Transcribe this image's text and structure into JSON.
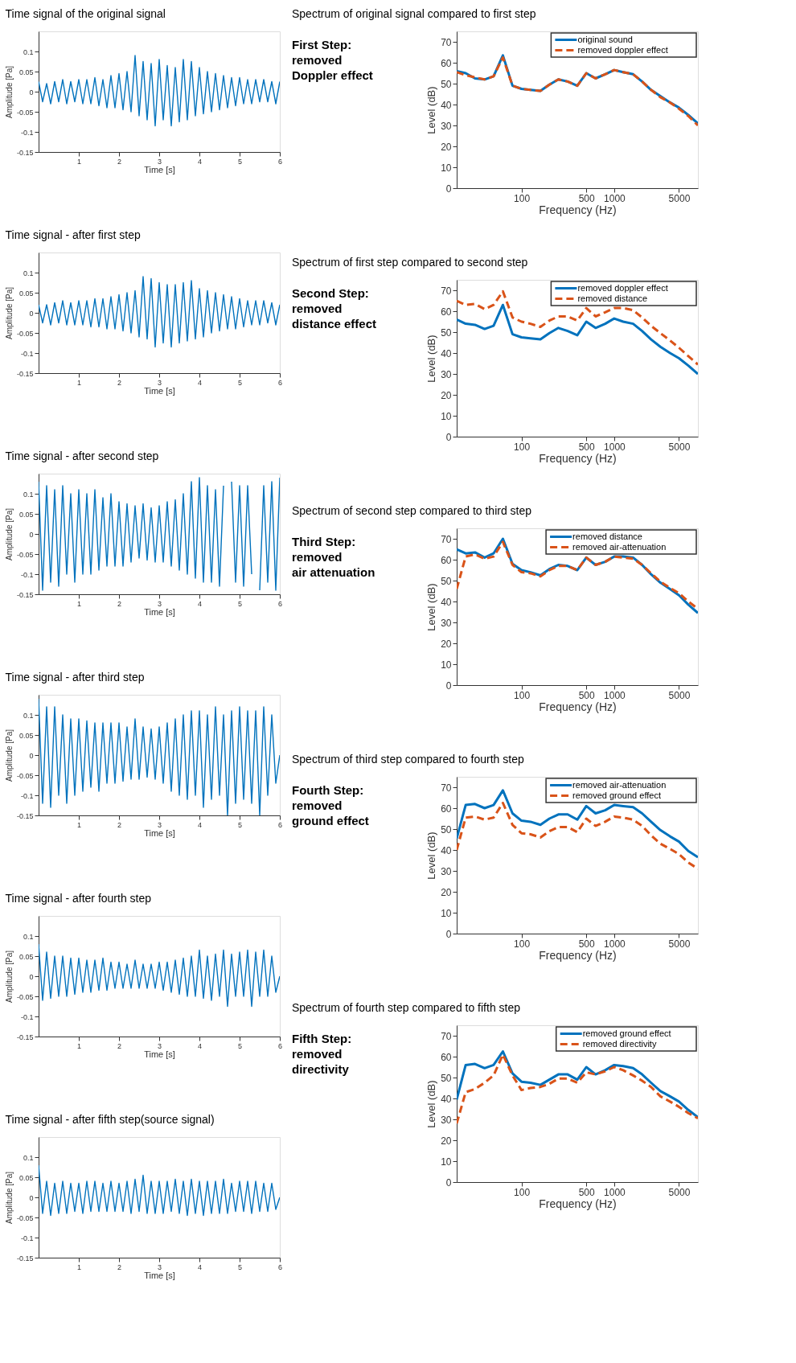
{
  "chart_data": [
    {
      "type": "line",
      "title": "Time signal of the original signal",
      "xlabel": "Time [s]",
      "ylabel": "Amplitude [Pa]",
      "xlim": [
        0,
        6
      ],
      "xticks": [
        1,
        2,
        3,
        4,
        5,
        6
      ],
      "ylim": [
        -0.15,
        0.15
      ],
      "yticks": [
        -0.15,
        -0.1,
        -0.05,
        0,
        0.05,
        0.1
      ],
      "x": [
        0,
        0.1,
        0.2,
        0.3,
        0.4,
        0.5,
        0.6,
        0.7,
        0.8,
        0.9,
        1.0,
        1.1,
        1.2,
        1.3,
        1.4,
        1.5,
        1.6,
        1.7,
        1.8,
        1.9,
        2.0,
        2.1,
        2.2,
        2.3,
        2.4,
        2.5,
        2.6,
        2.7,
        2.8,
        2.9,
        3.0,
        3.1,
        3.2,
        3.3,
        3.4,
        3.5,
        3.6,
        3.7,
        3.8,
        3.9,
        4.0,
        4.1,
        4.2,
        4.3,
        4.4,
        4.5,
        4.6,
        4.7,
        4.8,
        4.9,
        5.0,
        5.1,
        5.2,
        5.3,
        5.4,
        5.5,
        5.6,
        5.7,
        5.8,
        5.9,
        6.0
      ],
      "series": [
        {
          "color": "#0072bd",
          "line_style": "solid",
          "values": [
            0.025,
            -0.025,
            0.02,
            -0.03,
            0.025,
            -0.025,
            0.03,
            -0.03,
            0.025,
            -0.025,
            0.03,
            -0.03,
            0.03,
            -0.03,
            0.035,
            -0.035,
            0.03,
            -0.04,
            0.04,
            -0.04,
            0.045,
            -0.045,
            0.05,
            -0.05,
            0.09,
            -0.06,
            0.075,
            -0.07,
            0.07,
            -0.085,
            0.08,
            -0.07,
            0.065,
            -0.085,
            0.06,
            -0.075,
            0.08,
            -0.07,
            0.075,
            -0.06,
            0.06,
            -0.055,
            0.05,
            -0.05,
            0.045,
            -0.045,
            0.04,
            -0.04,
            0.035,
            -0.035,
            0.035,
            -0.03,
            0.03,
            -0.03,
            0.03,
            -0.025,
            0.03,
            -0.025,
            0.025,
            -0.03,
            0.025
          ]
        }
      ]
    },
    {
      "type": "line",
      "title": "Spectrum of original signal compared to  first step",
      "xlabel": "Frequency (Hz)",
      "ylabel": "Level (dB)",
      "log": "x",
      "legend": "top right",
      "xlim": [
        20,
        8000
      ],
      "xticks": [
        100,
        500,
        1000,
        5000
      ],
      "ylim": [
        0,
        75
      ],
      "yticks": [
        0,
        10,
        20,
        30,
        40,
        50,
        60,
        70
      ],
      "annotations": [
        "First Step:",
        "removed",
        "Doppler effect"
      ],
      "x": [
        20,
        25,
        31.5,
        40,
        50,
        63,
        80,
        100,
        125,
        160,
        200,
        250,
        315,
        400,
        500,
        630,
        800,
        1000,
        1250,
        1600,
        2000,
        2500,
        3150,
        4000,
        5000,
        6300,
        8000
      ],
      "series": [
        {
          "name": "original sound",
          "color": "#0072bd",
          "line_style": "solid",
          "values": [
            56,
            55,
            52.5,
            52,
            53.5,
            63.5,
            49,
            47.5,
            47,
            46.5,
            49.5,
            52,
            51,
            49,
            55,
            52.5,
            54.5,
            56.5,
            55.5,
            54.5,
            51,
            47,
            44,
            41,
            38.5,
            35,
            31
          ]
        },
        {
          "name": "removed doppler effect",
          "color": "#d95319",
          "line_style": "dashed",
          "values": [
            55.5,
            54,
            53,
            52,
            53.5,
            62.5,
            49,
            47.5,
            47,
            46.5,
            49.5,
            52,
            51,
            49,
            55,
            52.5,
            54.5,
            56.5,
            55.5,
            54.5,
            51,
            47,
            43.5,
            41,
            38,
            34.5,
            30
          ]
        }
      ]
    },
    {
      "type": "line",
      "title": "Time signal - after first step",
      "xlabel": "Time [s]",
      "ylabel": "Amplitude [Pa]",
      "xlim": [
        0,
        6
      ],
      "xticks": [
        1,
        2,
        3,
        4,
        5,
        6
      ],
      "ylim": [
        -0.15,
        0.15
      ],
      "yticks": [
        -0.15,
        -0.1,
        -0.05,
        0,
        0.05,
        0.1
      ],
      "x": [
        0,
        0.1,
        0.2,
        0.3,
        0.4,
        0.5,
        0.6,
        0.7,
        0.8,
        0.9,
        1.0,
        1.1,
        1.2,
        1.3,
        1.4,
        1.5,
        1.6,
        1.7,
        1.8,
        1.9,
        2.0,
        2.1,
        2.2,
        2.3,
        2.4,
        2.5,
        2.6,
        2.7,
        2.8,
        2.9,
        3.0,
        3.1,
        3.2,
        3.3,
        3.4,
        3.5,
        3.6,
        3.7,
        3.8,
        3.9,
        4.0,
        4.1,
        4.2,
        4.3,
        4.4,
        4.5,
        4.6,
        4.7,
        4.8,
        4.9,
        5.0,
        5.1,
        5.2,
        5.3,
        5.4,
        5.5,
        5.6,
        5.7,
        5.8,
        5.9,
        6.0
      ],
      "series": [
        {
          "color": "#0072bd",
          "line_style": "solid",
          "values": [
            0.02,
            -0.025,
            0.02,
            -0.03,
            0.025,
            -0.025,
            0.03,
            -0.03,
            0.025,
            -0.03,
            0.03,
            -0.03,
            0.03,
            -0.035,
            0.035,
            -0.035,
            0.035,
            -0.04,
            0.04,
            -0.04,
            0.045,
            -0.045,
            0.05,
            -0.05,
            0.055,
            -0.06,
            0.09,
            -0.065,
            0.085,
            -0.085,
            0.075,
            -0.075,
            0.07,
            -0.085,
            0.07,
            -0.075,
            0.075,
            -0.07,
            0.08,
            -0.065,
            0.06,
            -0.06,
            0.055,
            -0.05,
            0.05,
            -0.045,
            0.045,
            -0.04,
            0.04,
            -0.04,
            0.035,
            -0.035,
            0.03,
            -0.03,
            0.03,
            -0.03,
            0.03,
            -0.025,
            0.025,
            -0.03,
            0.02
          ]
        }
      ]
    },
    {
      "type": "line",
      "title": "Spectrum of first step compared to  second step",
      "xlabel": "Frequency (Hz)",
      "ylabel": "Level (dB)",
      "log": "x",
      "legend": "top right",
      "xlim": [
        20,
        8000
      ],
      "xticks": [
        100,
        500,
        1000,
        5000
      ],
      "ylim": [
        0,
        75
      ],
      "yticks": [
        0,
        10,
        20,
        30,
        40,
        50,
        60,
        70
      ],
      "annotations": [
        "Second Step:",
        " removed",
        "distance effect"
      ],
      "x": [
        20,
        25,
        31.5,
        40,
        50,
        63,
        80,
        100,
        125,
        160,
        200,
        250,
        315,
        400,
        500,
        630,
        800,
        1000,
        1250,
        1600,
        2000,
        2500,
        3150,
        4000,
        5000,
        6300,
        8000
      ],
      "series": [
        {
          "name": "removed doppler effect",
          "color": "#0072bd",
          "line_style": "solid",
          "values": [
            56,
            54,
            53.5,
            51.5,
            53,
            63,
            49,
            47.5,
            47,
            46.5,
            49.5,
            52,
            50.5,
            48.5,
            55,
            52,
            54,
            56.5,
            55,
            54,
            50.5,
            46.5,
            43,
            40,
            37.5,
            34,
            30
          ]
        },
        {
          "name": "removed distance",
          "color": "#d95319",
          "line_style": "dashed",
          "values": [
            65,
            63,
            63.5,
            61,
            63,
            69.5,
            57,
            55,
            54,
            52.5,
            55.5,
            57.5,
            57.5,
            55.5,
            61.5,
            57.5,
            59.5,
            61.5,
            61.5,
            60.5,
            57,
            53,
            49.5,
            46,
            42.5,
            38.5,
            34.5
          ]
        }
      ]
    },
    {
      "type": "line",
      "title": "Time signal - after second step",
      "xlabel": "Time [s]",
      "ylabel": "Amplitude [Pa]",
      "xlim": [
        0,
        6
      ],
      "xticks": [
        1,
        2,
        3,
        4,
        5,
        6
      ],
      "ylim": [
        -0.15,
        0.15
      ],
      "yticks": [
        -0.15,
        -0.1,
        -0.05,
        0,
        0.05,
        0.1
      ],
      "x": [
        0,
        0.1,
        0.2,
        0.3,
        0.4,
        0.5,
        0.6,
        0.7,
        0.8,
        0.9,
        1.0,
        1.1,
        1.2,
        1.3,
        1.4,
        1.5,
        1.6,
        1.7,
        1.8,
        1.9,
        2.0,
        2.1,
        2.2,
        2.3,
        2.4,
        2.5,
        2.6,
        2.7,
        2.8,
        2.9,
        3.0,
        3.1,
        3.2,
        3.3,
        3.4,
        3.5,
        3.6,
        3.7,
        3.8,
        3.9,
        4.0,
        4.1,
        4.2,
        4.3,
        4.4,
        4.5,
        4.6,
        4.7,
        4.8,
        4.9,
        5.0,
        5.1,
        5.2,
        5.3,
        5.4,
        5.5,
        5.6,
        5.7,
        5.8,
        5.9,
        6.0
      ],
      "series": [
        {
          "color": "#0072bd",
          "line_style": "solid",
          "values": [
            0.13,
            -0.14,
            0.12,
            -0.12,
            0.11,
            -0.13,
            0.12,
            -0.1,
            0.1,
            -0.12,
            0.11,
            -0.1,
            0.1,
            -0.1,
            0.11,
            -0.09,
            0.09,
            -0.08,
            0.1,
            -0.08,
            0.08,
            -0.08,
            0.075,
            -0.07,
            0.07,
            -0.06,
            0.075,
            -0.065,
            0.065,
            -0.07,
            0.07,
            -0.07,
            0.08,
            -0.08,
            0.085,
            -0.09,
            0.1,
            -0.1,
            0.13,
            -0.11,
            0.14,
            -0.12,
            0.12,
            -0.12,
            0.11,
            -0.13,
            0.12,
            null,
            0.13,
            -0.12,
            0.12,
            -0.13,
            0.12,
            -0.1,
            null,
            -0.14,
            0.12,
            -0.12,
            0.13,
            -0.14,
            0.14
          ]
        }
      ]
    },
    {
      "type": "line",
      "title": "Spectrum of second step compared to  third step",
      "xlabel": "Frequency (Hz)",
      "ylabel": "Level (dB)",
      "log": "x",
      "legend": "top right",
      "xlim": [
        20,
        8000
      ],
      "xticks": [
        100,
        500,
        1000,
        5000
      ],
      "ylim": [
        0,
        75
      ],
      "yticks": [
        0,
        10,
        20,
        30,
        40,
        50,
        60,
        70
      ],
      "annotations": [
        "Third Step:",
        " removed",
        "air attenuation"
      ],
      "x": [
        20,
        25,
        31.5,
        40,
        50,
        63,
        80,
        100,
        125,
        160,
        200,
        250,
        315,
        400,
        500,
        630,
        800,
        1000,
        1250,
        1600,
        2000,
        2500,
        3150,
        4000,
        5000,
        6300,
        8000
      ],
      "series": [
        {
          "name": "removed distance",
          "color": "#0072bd",
          "line_style": "solid",
          "values": [
            65,
            63,
            63.5,
            61,
            63,
            70,
            58,
            55,
            54,
            52.5,
            55.5,
            57.5,
            57,
            55,
            61,
            57.5,
            59,
            61.5,
            61.5,
            61,
            57.5,
            53,
            49,
            46,
            43,
            38.5,
            34.5
          ]
        },
        {
          "name": "removed air-attenuation",
          "color": "#d95319",
          "line_style": "dashed",
          "values": [
            46,
            61.5,
            62.5,
            60.5,
            61.5,
            68.5,
            57.5,
            54,
            53.5,
            52,
            55,
            57,
            57,
            55,
            61,
            57.5,
            59,
            61.5,
            61,
            60.5,
            57.5,
            53.5,
            49.5,
            46.5,
            44,
            40,
            36.5
          ]
        }
      ]
    },
    {
      "type": "line",
      "title": "Time signal - after third step",
      "xlabel": "Time [s]",
      "ylabel": "Amplitude [Pa]",
      "xlim": [
        0,
        6
      ],
      "xticks": [
        1,
        2,
        3,
        4,
        5,
        6
      ],
      "ylim": [
        -0.15,
        0.15
      ],
      "yticks": [
        -0.15,
        -0.1,
        -0.05,
        0,
        0.05,
        0.1
      ],
      "x": [
        0,
        0.1,
        0.2,
        0.3,
        0.4,
        0.5,
        0.6,
        0.7,
        0.8,
        0.9,
        1.0,
        1.1,
        1.2,
        1.3,
        1.4,
        1.5,
        1.6,
        1.7,
        1.8,
        1.9,
        2.0,
        2.1,
        2.2,
        2.3,
        2.4,
        2.5,
        2.6,
        2.7,
        2.8,
        2.9,
        3.0,
        3.1,
        3.2,
        3.3,
        3.4,
        3.5,
        3.6,
        3.7,
        3.8,
        3.9,
        4.0,
        4.1,
        4.2,
        4.3,
        4.4,
        4.5,
        4.6,
        4.7,
        4.8,
        4.9,
        5.0,
        5.1,
        5.2,
        5.3,
        5.4,
        5.5,
        5.6,
        5.7,
        5.8,
        5.9,
        6.0
      ],
      "series": [
        {
          "color": "#0072bd",
          "line_style": "solid",
          "values": [
            0.14,
            -0.12,
            0.12,
            -0.13,
            0.12,
            -0.1,
            0.1,
            -0.12,
            0.09,
            -0.1,
            0.09,
            -0.09,
            0.085,
            -0.08,
            0.08,
            -0.09,
            0.08,
            -0.07,
            0.08,
            -0.07,
            0.08,
            -0.065,
            0.07,
            -0.06,
            0.09,
            -0.06,
            0.07,
            -0.055,
            0.065,
            -0.06,
            0.07,
            -0.07,
            0.08,
            -0.09,
            0.09,
            -0.1,
            0.1,
            -0.11,
            0.11,
            -0.1,
            0.11,
            -0.13,
            0.1,
            -0.11,
            0.12,
            -0.1,
            0.1,
            -0.15,
            0.11,
            -0.12,
            0.12,
            -0.11,
            0.11,
            -0.12,
            0.11,
            -0.15,
            0.12,
            -0.1,
            0.1,
            -0.07,
            0
          ]
        }
      ]
    },
    {
      "type": "line",
      "title": "Spectrum of third step compared to  fourth step",
      "xlabel": "Frequency (Hz)",
      "ylabel": "Level (dB)",
      "log": "x",
      "legend": "top right",
      "xlim": [
        20,
        8000
      ],
      "xticks": [
        100,
        500,
        1000,
        5000
      ],
      "ylim": [
        0,
        75
      ],
      "yticks": [
        0,
        10,
        20,
        30,
        40,
        50,
        60,
        70
      ],
      "annotations": [
        "Fourth Step:",
        " removed",
        "ground effect"
      ],
      "x": [
        20,
        25,
        31.5,
        40,
        50,
        63,
        80,
        100,
        125,
        160,
        200,
        250,
        315,
        400,
        500,
        630,
        800,
        1000,
        1250,
        1600,
        2000,
        2500,
        3150,
        4000,
        5000,
        6300,
        8000
      ],
      "series": [
        {
          "name": "removed air-attenuation",
          "color": "#0072bd",
          "line_style": "solid",
          "values": [
            45.5,
            61.5,
            62,
            60,
            61.5,
            68.5,
            57.5,
            54,
            53.5,
            52,
            55,
            57,
            57,
            54.5,
            61,
            57.5,
            59,
            61.5,
            61,
            60.5,
            57.5,
            53.5,
            49.5,
            46.5,
            44,
            39.5,
            36.5
          ]
        },
        {
          "name": "removed ground effect",
          "color": "#d95319",
          "line_style": "dashed",
          "values": [
            40,
            55.5,
            56,
            54.5,
            55.5,
            62.5,
            52,
            48,
            47.5,
            46,
            49,
            51,
            51,
            48.5,
            55,
            51.5,
            53.5,
            56,
            55.5,
            54.5,
            51.5,
            47,
            43,
            40.5,
            38,
            34,
            31
          ]
        }
      ]
    },
    {
      "type": "line",
      "title": "Time signal - after fourth step",
      "xlabel": "Time [s]",
      "ylabel": "Amplitude [Pa]",
      "xlim": [
        0,
        6
      ],
      "xticks": [
        1,
        2,
        3,
        4,
        5,
        6
      ],
      "ylim": [
        -0.15,
        0.15
      ],
      "yticks": [
        -0.15,
        -0.1,
        -0.05,
        0,
        0.05,
        0.1
      ],
      "x": [
        0,
        0.1,
        0.2,
        0.3,
        0.4,
        0.5,
        0.6,
        0.7,
        0.8,
        0.9,
        1.0,
        1.1,
        1.2,
        1.3,
        1.4,
        1.5,
        1.6,
        1.7,
        1.8,
        1.9,
        2.0,
        2.1,
        2.2,
        2.3,
        2.4,
        2.5,
        2.6,
        2.7,
        2.8,
        2.9,
        3.0,
        3.1,
        3.2,
        3.3,
        3.4,
        3.5,
        3.6,
        3.7,
        3.8,
        3.9,
        4.0,
        4.1,
        4.2,
        4.3,
        4.4,
        4.5,
        4.6,
        4.7,
        4.8,
        4.9,
        5.0,
        5.1,
        5.2,
        5.3,
        5.4,
        5.5,
        5.6,
        5.7,
        5.8,
        5.9,
        6.0
      ],
      "series": [
        {
          "color": "#0072bd",
          "line_style": "solid",
          "values": [
            0.08,
            -0.06,
            0.06,
            -0.055,
            0.05,
            -0.05,
            0.05,
            -0.05,
            0.045,
            -0.045,
            0.045,
            -0.04,
            0.04,
            -0.04,
            0.04,
            -0.035,
            0.045,
            -0.035,
            0.035,
            -0.03,
            0.035,
            -0.03,
            0.03,
            -0.03,
            0.04,
            -0.03,
            0.03,
            -0.03,
            0.03,
            -0.03,
            0.035,
            -0.035,
            0.035,
            -0.04,
            0.04,
            -0.045,
            0.045,
            -0.05,
            0.05,
            -0.05,
            0.065,
            -0.055,
            0.05,
            -0.06,
            0.055,
            -0.05,
            0.065,
            -0.075,
            0.055,
            -0.05,
            0.06,
            -0.05,
            0.065,
            -0.075,
            0.06,
            -0.05,
            0.065,
            -0.05,
            0.05,
            -0.04,
            0
          ]
        }
      ]
    },
    {
      "type": "line",
      "title": "Spectrum of fourth step compared to  fifth step",
      "xlabel": "Frequency (Hz)",
      "ylabel": "Level (dB)",
      "log": "x",
      "legend": "top right",
      "xlim": [
        20,
        8000
      ],
      "xticks": [
        100,
        500,
        1000,
        5000
      ],
      "ylim": [
        0,
        75
      ],
      "yticks": [
        0,
        10,
        20,
        30,
        40,
        50,
        60,
        70
      ],
      "annotations": [
        "Fifth Step:",
        " removed",
        "directivity"
      ],
      "x": [
        20,
        25,
        31.5,
        40,
        50,
        63,
        80,
        100,
        125,
        160,
        200,
        250,
        315,
        400,
        500,
        630,
        800,
        1000,
        1250,
        1600,
        2000,
        2500,
        3150,
        4000,
        5000,
        6300,
        8000
      ],
      "series": [
        {
          "name": "removed ground effect",
          "color": "#0072bd",
          "line_style": "solid",
          "values": [
            39.5,
            56,
            56.5,
            54.5,
            56,
            62.5,
            52,
            48,
            47.5,
            46.5,
            49,
            51.5,
            51.5,
            49,
            55,
            51.5,
            53.5,
            56,
            55.5,
            54.5,
            51.5,
            47.5,
            43.5,
            41,
            38.5,
            34.5,
            31
          ]
        },
        {
          "name": "removed directivity",
          "color": "#d95319",
          "line_style": "dashed",
          "values": [
            28,
            43,
            44.5,
            47.5,
            51,
            61,
            51,
            44,
            45,
            45.5,
            47,
            49.5,
            49.5,
            47.5,
            52.5,
            51.5,
            53,
            55,
            53.5,
            51,
            48.5,
            45.5,
            41,
            38.5,
            36,
            33,
            30.5
          ]
        }
      ]
    },
    {
      "type": "line",
      "title": "Time signal - after fifth step(source signal)",
      "xlabel": "Time [s]",
      "ylabel": "Amplitude [Pa]",
      "xlim": [
        0,
        6
      ],
      "xticks": [
        1,
        2,
        3,
        4,
        5,
        6
      ],
      "ylim": [
        -0.15,
        0.15
      ],
      "yticks": [
        -0.15,
        -0.1,
        -0.05,
        0,
        0.05,
        0.1
      ],
      "x": [
        0,
        0.1,
        0.2,
        0.3,
        0.4,
        0.5,
        0.6,
        0.7,
        0.8,
        0.9,
        1.0,
        1.1,
        1.2,
        1.3,
        1.4,
        1.5,
        1.6,
        1.7,
        1.8,
        1.9,
        2.0,
        2.1,
        2.2,
        2.3,
        2.4,
        2.5,
        2.6,
        2.7,
        2.8,
        2.9,
        3.0,
        3.1,
        3.2,
        3.3,
        3.4,
        3.5,
        3.6,
        3.7,
        3.8,
        3.9,
        4.0,
        4.1,
        4.2,
        4.3,
        4.4,
        4.5,
        4.6,
        4.7,
        4.8,
        4.9,
        5.0,
        5.1,
        5.2,
        5.3,
        5.4,
        5.5,
        5.6,
        5.7,
        5.8,
        5.9,
        6.0
      ],
      "series": [
        {
          "color": "#0072bd",
          "line_style": "solid",
          "values": [
            0.08,
            -0.04,
            0.04,
            -0.045,
            0.035,
            -0.04,
            0.04,
            -0.04,
            0.035,
            -0.035,
            0.035,
            -0.04,
            0.04,
            -0.035,
            0.04,
            -0.035,
            0.035,
            -0.035,
            0.04,
            -0.035,
            0.035,
            -0.035,
            0.04,
            -0.04,
            0.045,
            -0.035,
            0.055,
            -0.04,
            0.04,
            -0.04,
            0.04,
            -0.04,
            0.04,
            -0.035,
            0.045,
            -0.04,
            0.04,
            -0.045,
            0.045,
            -0.04,
            0.04,
            -0.045,
            0.04,
            -0.04,
            0.04,
            -0.04,
            0.045,
            -0.04,
            0.035,
            -0.035,
            0.04,
            -0.035,
            0.04,
            -0.04,
            0.04,
            -0.035,
            0.035,
            -0.035,
            0.035,
            -0.03,
            0
          ]
        }
      ]
    }
  ]
}
